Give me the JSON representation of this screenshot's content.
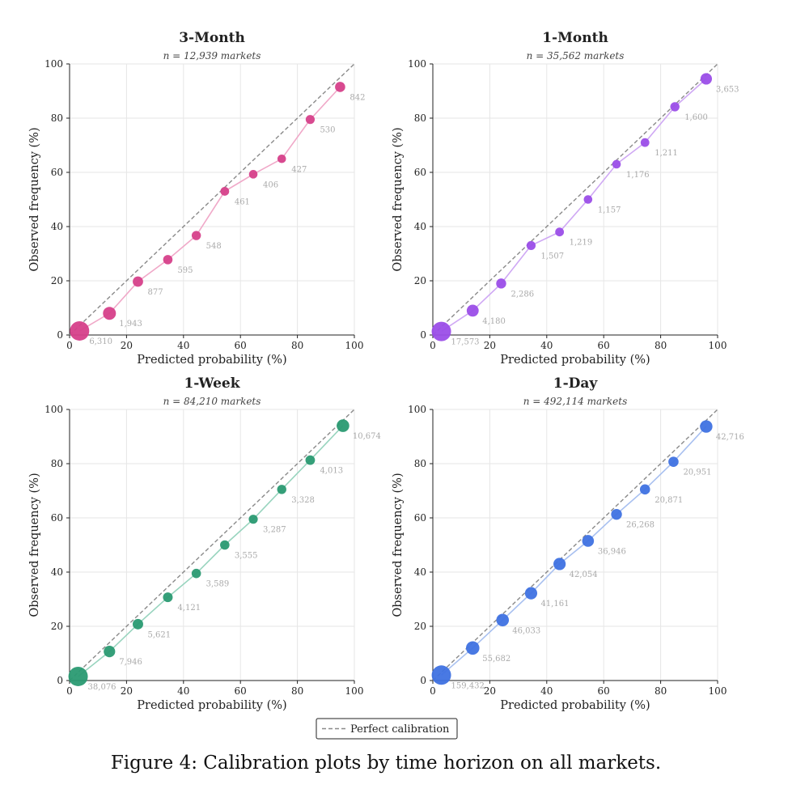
{
  "caption": "Figure 4: Calibration plots by time horizon on all markets.",
  "legend": {
    "label": "Perfect calibration"
  },
  "chart_data": [
    {
      "type": "scatter",
      "title": "3-Month",
      "subtitle": "n = 12,939 markets",
      "xlabel": "Predicted probability (%)",
      "ylabel": "Observed frequency (%)",
      "xlim": [
        0,
        100
      ],
      "ylim": [
        0,
        100
      ],
      "xticks": [
        "0",
        "20",
        "40",
        "60",
        "80",
        "100"
      ],
      "yticks": [
        "0",
        "20",
        "40",
        "60",
        "80",
        "100"
      ],
      "grid": true,
      "color": "#d6408a",
      "line_color": "#f0a8c8",
      "reference_line": "Perfect calibration",
      "points": [
        {
          "x": 3.5,
          "y": 1.5,
          "count": 6310,
          "label": "6,310"
        },
        {
          "x": 14,
          "y": 8,
          "count": 1943,
          "label": "1,943"
        },
        {
          "x": 24,
          "y": 19.7,
          "count": 877,
          "label": "877"
        },
        {
          "x": 34.5,
          "y": 27.8,
          "count": 595,
          "label": "595"
        },
        {
          "x": 44.5,
          "y": 36.7,
          "count": 548,
          "label": "548"
        },
        {
          "x": 54.5,
          "y": 53,
          "count": 461,
          "label": "461"
        },
        {
          "x": 64.5,
          "y": 59.3,
          "count": 406,
          "label": "406"
        },
        {
          "x": 74.5,
          "y": 65,
          "count": 427,
          "label": "427"
        },
        {
          "x": 84.5,
          "y": 79.5,
          "count": 530,
          "label": "530"
        },
        {
          "x": 95,
          "y": 91.5,
          "count": 842,
          "label": "842"
        }
      ]
    },
    {
      "type": "scatter",
      "title": "1-Month",
      "subtitle": "n = 35,562 markets",
      "xlabel": "Predicted probability (%)",
      "ylabel": "Observed frequency (%)",
      "xlim": [
        0,
        100
      ],
      "ylim": [
        0,
        100
      ],
      "xticks": [
        "0",
        "20",
        "40",
        "60",
        "80",
        "100"
      ],
      "yticks": [
        "0",
        "20",
        "40",
        "60",
        "80",
        "100"
      ],
      "grid": true,
      "color": "#9b4ee8",
      "line_color": "#cfa8f4",
      "reference_line": "Perfect calibration",
      "points": [
        {
          "x": 3,
          "y": 1.3,
          "count": 17573,
          "label": "17,573"
        },
        {
          "x": 14,
          "y": 9,
          "count": 4180,
          "label": "4,180"
        },
        {
          "x": 24,
          "y": 19,
          "count": 2286,
          "label": "2,286"
        },
        {
          "x": 34.5,
          "y": 33,
          "count": 1507,
          "label": "1,507"
        },
        {
          "x": 44.5,
          "y": 38,
          "count": 1219,
          "label": "1,219"
        },
        {
          "x": 54.5,
          "y": 50,
          "count": 1157,
          "label": "1,157"
        },
        {
          "x": 64.5,
          "y": 63,
          "count": 1176,
          "label": "1,176"
        },
        {
          "x": 74.5,
          "y": 71,
          "count": 1211,
          "label": "1,211"
        },
        {
          "x": 85,
          "y": 84.2,
          "count": 1600,
          "label": "1,600"
        },
        {
          "x": 96,
          "y": 94.5,
          "count": 3653,
          "label": "3,653"
        }
      ]
    },
    {
      "type": "scatter",
      "title": "1-Week",
      "subtitle": "n = 84,210 markets",
      "xlabel": "Predicted probability (%)",
      "ylabel": "Observed frequency (%)",
      "xlim": [
        0,
        100
      ],
      "ylim": [
        0,
        100
      ],
      "xticks": [
        "0",
        "20",
        "40",
        "60",
        "80",
        "100"
      ],
      "yticks": [
        "0",
        "20",
        "40",
        "60",
        "80",
        "100"
      ],
      "grid": true,
      "color": "#2a9a72",
      "line_color": "#98d4be",
      "reference_line": "Perfect calibration",
      "points": [
        {
          "x": 3,
          "y": 1.5,
          "count": 38076,
          "label": "38,076"
        },
        {
          "x": 14,
          "y": 10.7,
          "count": 7946,
          "label": "7,946"
        },
        {
          "x": 24,
          "y": 20.8,
          "count": 5621,
          "label": "5,621"
        },
        {
          "x": 34.5,
          "y": 30.7,
          "count": 4121,
          "label": "4,121"
        },
        {
          "x": 44.5,
          "y": 39.5,
          "count": 3589,
          "label": "3,589"
        },
        {
          "x": 54.5,
          "y": 50,
          "count": 3555,
          "label": "3,555"
        },
        {
          "x": 64.5,
          "y": 59.5,
          "count": 3287,
          "label": "3,287"
        },
        {
          "x": 74.5,
          "y": 70.5,
          "count": 3328,
          "label": "3,328"
        },
        {
          "x": 84.5,
          "y": 81.3,
          "count": 4013,
          "label": "4,013"
        },
        {
          "x": 96,
          "y": 94,
          "count": 10674,
          "label": "10,674"
        }
      ]
    },
    {
      "type": "scatter",
      "title": "1-Day",
      "subtitle": "n = 492,114 markets",
      "xlabel": "Predicted probability (%)",
      "ylabel": "Observed frequency (%)",
      "xlim": [
        0,
        100
      ],
      "ylim": [
        0,
        100
      ],
      "xticks": [
        "0",
        "20",
        "40",
        "60",
        "80",
        "100"
      ],
      "yticks": [
        "0",
        "20",
        "40",
        "60",
        "80",
        "100"
      ],
      "grid": true,
      "color": "#3f72e2",
      "line_color": "#a8c0f0",
      "reference_line": "Perfect calibration",
      "points": [
        {
          "x": 3,
          "y": 2,
          "count": 159432,
          "label": "159,432"
        },
        {
          "x": 14,
          "y": 12,
          "count": 55682,
          "label": "55,682"
        },
        {
          "x": 24.5,
          "y": 22.3,
          "count": 46033,
          "label": "46,033"
        },
        {
          "x": 34.5,
          "y": 32.2,
          "count": 41161,
          "label": "41,161"
        },
        {
          "x": 44.5,
          "y": 43,
          "count": 42054,
          "label": "42,054"
        },
        {
          "x": 54.5,
          "y": 51.5,
          "count": 36946,
          "label": "36,946"
        },
        {
          "x": 64.5,
          "y": 61.3,
          "count": 26268,
          "label": "26,268"
        },
        {
          "x": 74.5,
          "y": 70.5,
          "count": 20871,
          "label": "20,871"
        },
        {
          "x": 84.5,
          "y": 80.7,
          "count": 20951,
          "label": "20,951"
        },
        {
          "x": 96,
          "y": 93.7,
          "count": 42716,
          "label": "42,716"
        }
      ]
    }
  ]
}
